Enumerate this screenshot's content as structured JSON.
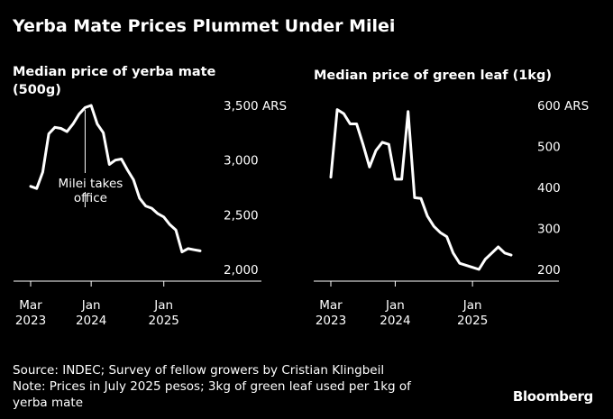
{
  "title": "Yerba Mate Prices Plummet Under Milei",
  "footer": {
    "source": "Source: INDEC; Survey of fellow growers by Cristian Klingbeil",
    "note_line1": "Note: Prices in July 2025 pesos; 3kg of green leaf used per 1kg of",
    "note_line2": "yerba mate"
  },
  "brand": "Bloomberg",
  "chart_data": [
    {
      "type": "line",
      "title": "Median price of yerba mate (500g)",
      "title_lines": [
        "Median price of yerba mate",
        "(500g)"
      ],
      "unit": "ARS",
      "ylim": [
        2000,
        3500
      ],
      "y_ticks": [
        2000,
        2500,
        3000,
        3500
      ],
      "y_tick_labels": [
        "2,000",
        "2,500",
        "3,000",
        "3,500 ARS"
      ],
      "x_tick_labels": [
        {
          "month": "Mar",
          "year": "2023"
        },
        {
          "month": "Jan",
          "year": "2024"
        },
        {
          "month": "Jan",
          "year": "2025"
        }
      ],
      "x_ticks": [
        "2023-03",
        "2024-01",
        "2025-01"
      ],
      "xlim": [
        "2023-03",
        "2025-07"
      ],
      "annotation": {
        "lines": [
          "Milei takes",
          "office"
        ],
        "date": "2023-12"
      },
      "grid": false,
      "series": [
        {
          "x": [
            "2023-03",
            "2023-04",
            "2023-05",
            "2023-06",
            "2023-07",
            "2023-08",
            "2023-09",
            "2023-10",
            "2023-11",
            "2023-12",
            "2024-01",
            "2024-02",
            "2024-03",
            "2024-04",
            "2024-05",
            "2024-06",
            "2024-07",
            "2024-08",
            "2024-09",
            "2024-10",
            "2024-11",
            "2024-12",
            "2025-01",
            "2025-02",
            "2025-03",
            "2025-04",
            "2025-05",
            "2025-06",
            "2025-07"
          ],
          "values": [
            2760,
            2740,
            2890,
            3240,
            3300,
            3290,
            3260,
            3330,
            3420,
            3480,
            3500,
            3330,
            3250,
            2960,
            3000,
            3010,
            2910,
            2820,
            2650,
            2580,
            2560,
            2510,
            2480,
            2410,
            2360,
            2160,
            2190,
            2180,
            2170
          ]
        }
      ]
    },
    {
      "type": "line",
      "title": "Median price of green leaf (1kg)",
      "title_lines": [
        "Median price of green leaf (1kg)"
      ],
      "unit": "ARS",
      "ylim": [
        200,
        600
      ],
      "y_ticks": [
        200,
        300,
        400,
        500,
        600
      ],
      "y_tick_labels": [
        "200",
        "300",
        "400",
        "500",
        "600 ARS"
      ],
      "x_tick_labels": [
        {
          "month": "Mar",
          "year": "2023"
        },
        {
          "month": "Jan",
          "year": "2024"
        },
        {
          "month": "Jan",
          "year": "2025"
        }
      ],
      "x_ticks": [
        "2023-03",
        "2024-01",
        "2025-01"
      ],
      "xlim": [
        "2023-03",
        "2025-07"
      ],
      "grid": false,
      "series": [
        {
          "x": [
            "2023-03",
            "2023-04",
            "2023-05",
            "2023-06",
            "2023-07",
            "2023-08",
            "2023-09",
            "2023-10",
            "2023-11",
            "2023-12",
            "2024-01",
            "2024-02",
            "2024-03",
            "2024-04",
            "2024-05",
            "2024-06",
            "2024-07",
            "2024-08",
            "2024-09",
            "2024-10",
            "2024-11",
            "2024-12",
            "2025-01",
            "2025-02",
            "2025-03",
            "2025-04",
            "2025-05",
            "2025-06",
            "2025-07"
          ],
          "values": [
            425,
            590,
            580,
            555,
            555,
            505,
            450,
            490,
            510,
            505,
            420,
            420,
            585,
            375,
            373,
            330,
            305,
            290,
            280,
            240,
            215,
            210,
            205,
            200,
            225,
            240,
            255,
            240,
            235
          ]
        }
      ]
    }
  ]
}
